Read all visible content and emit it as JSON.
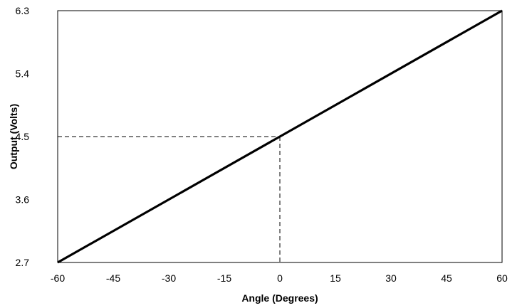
{
  "chart_data": {
    "type": "line",
    "title": "",
    "xlabel": "Angle (Degrees)",
    "ylabel": "Output (Volts)",
    "xlim": [
      -60,
      60
    ],
    "ylim": [
      2.7,
      6.3
    ],
    "x_ticks": [
      "-60",
      "-45",
      "-30",
      "-15",
      "0",
      "15",
      "30",
      "45",
      "60"
    ],
    "y_ticks": [
      "2.7",
      "3.6",
      "4.5",
      "5.4",
      "6.3"
    ],
    "grid": false,
    "legend": "none",
    "series": [
      {
        "x": [
          -60,
          60
        ],
        "y": [
          2.7,
          6.3
        ],
        "color": "#000000"
      }
    ],
    "reference_point": {
      "x": 0,
      "y": 4.5,
      "style": "dashed"
    }
  }
}
